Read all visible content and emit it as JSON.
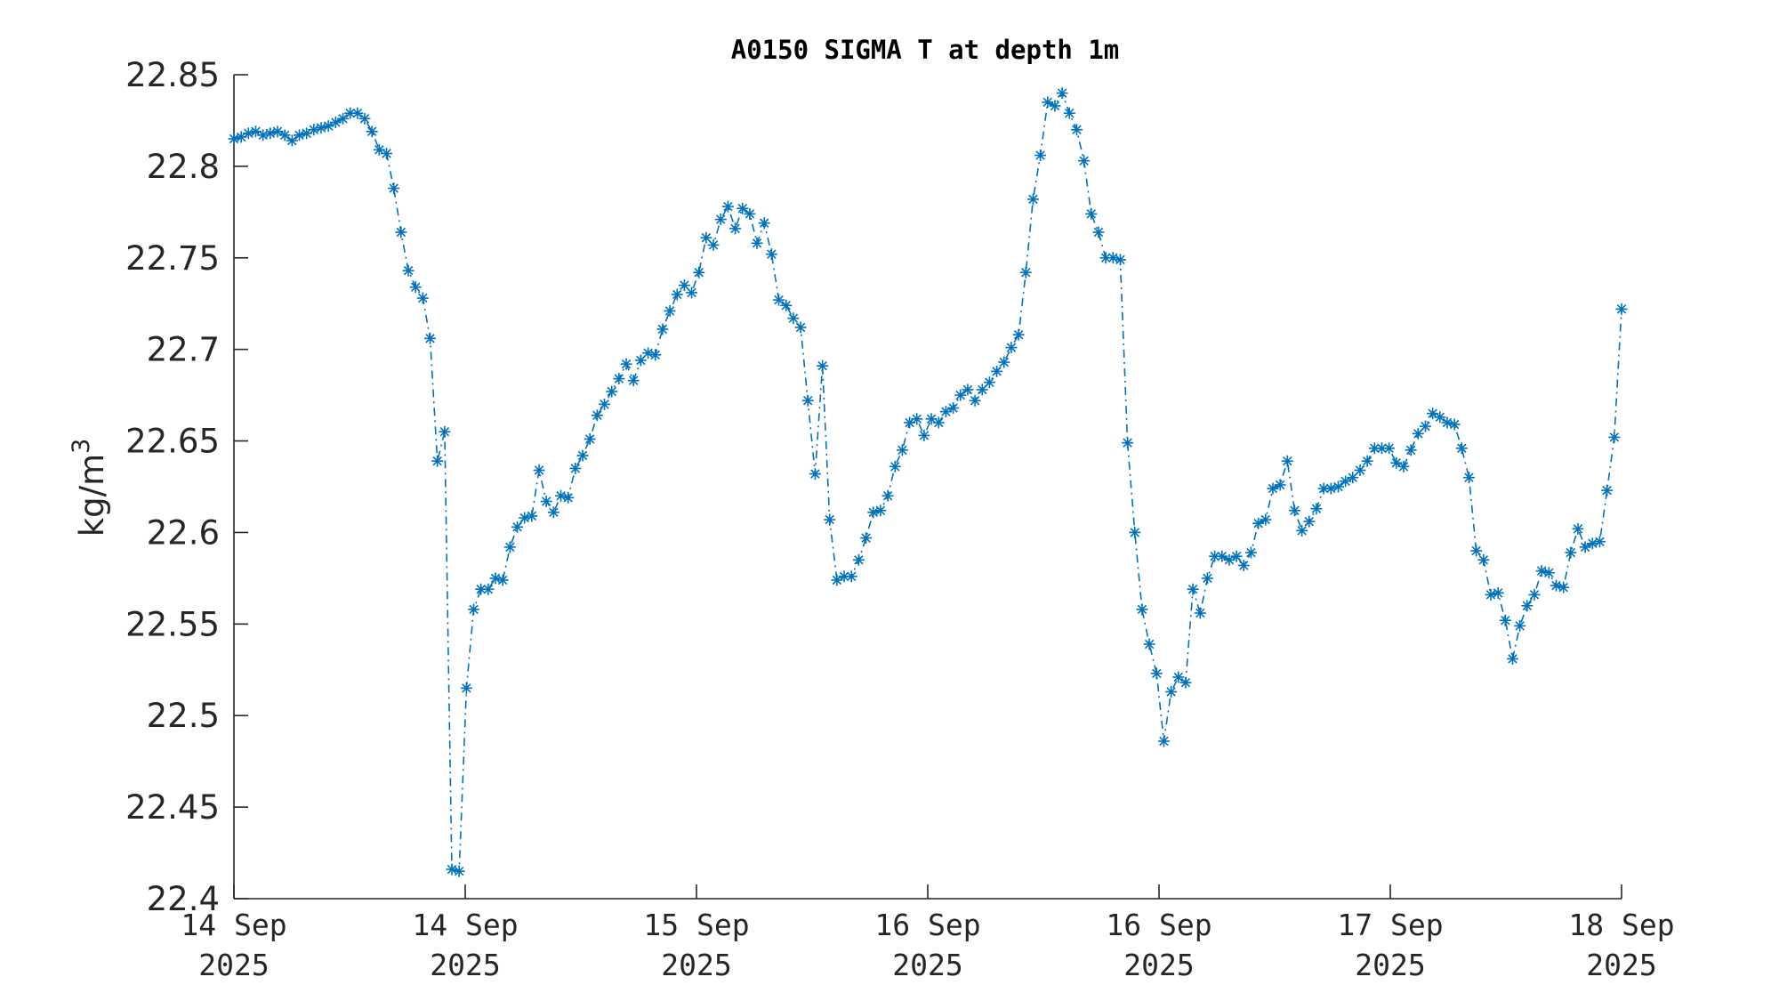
{
  "chart_data": {
    "type": "line",
    "title": "A0150 SIGMA T at depth 1m",
    "xlabel": "",
    "ylabel": "kg/m",
    "ylabel_superscript": "3",
    "ylim": [
      22.4,
      22.85
    ],
    "yticks": [
      "22.4",
      "22.45",
      "22.5",
      "22.55",
      "22.6",
      "22.65",
      "22.7",
      "22.75",
      "22.8",
      "22.85"
    ],
    "xticks": [
      {
        "line1": "14 Sep",
        "line2": "2025"
      },
      {
        "line1": "14 Sep",
        "line2": "2025"
      },
      {
        "line1": "15 Sep",
        "line2": "2025"
      },
      {
        "line1": "16 Sep",
        "line2": "2025"
      },
      {
        "line1": "16 Sep",
        "line2": "2025"
      },
      {
        "line1": "17 Sep",
        "line2": "2025"
      },
      {
        "line1": "18 Sep",
        "line2": "2025"
      }
    ],
    "xlim": [
      "2025-09-14 00:00",
      "2025-09-18 00:00"
    ],
    "grid": false,
    "line_style": "dash-dot",
    "marker": "asterisk",
    "series_color": "#0072BD",
    "series": [
      {
        "name": "",
        "values": [
          22.815,
          22.816,
          22.818,
          22.819,
          22.817,
          22.818,
          22.819,
          22.817,
          22.814,
          22.817,
          22.818,
          22.82,
          22.821,
          22.822,
          22.824,
          22.826,
          22.829,
          22.829,
          22.826,
          22.819,
          22.809,
          22.807,
          22.788,
          22.764,
          22.743,
          22.734,
          22.728,
          22.706,
          22.639,
          22.655,
          22.416,
          22.415,
          22.515,
          22.558,
          22.569,
          22.569,
          22.575,
          22.574,
          22.592,
          22.603,
          22.608,
          22.609,
          22.634,
          22.617,
          22.611,
          22.62,
          22.619,
          22.635,
          22.642,
          22.651,
          22.664,
          22.67,
          22.677,
          22.684,
          22.692,
          22.683,
          22.694,
          22.698,
          22.697,
          22.711,
          22.721,
          22.73,
          22.735,
          22.731,
          22.742,
          22.761,
          22.757,
          22.771,
          22.778,
          22.766,
          22.777,
          22.774,
          22.758,
          22.769,
          22.752,
          22.727,
          22.724,
          22.717,
          22.712,
          22.672,
          22.632,
          22.691,
          22.607,
          22.574,
          22.576,
          22.576,
          22.585,
          22.597,
          22.611,
          22.612,
          22.62,
          22.636,
          22.645,
          22.66,
          22.662,
          22.653,
          22.662,
          22.66,
          22.666,
          22.668,
          22.675,
          22.678,
          22.672,
          22.678,
          22.682,
          22.688,
          22.693,
          22.701,
          22.708,
          22.742,
          22.782,
          22.806,
          22.835,
          22.833,
          22.84,
          22.829,
          22.82,
          22.803,
          22.774,
          22.764,
          22.75,
          22.75,
          22.749,
          22.649,
          22.6,
          22.558,
          22.539,
          22.523,
          22.486,
          22.513,
          22.521,
          22.518,
          22.569,
          22.556,
          22.575,
          22.587,
          22.587,
          22.585,
          22.587,
          22.582,
          22.589,
          22.605,
          22.607,
          22.624,
          22.626,
          22.639,
          22.612,
          22.601,
          22.606,
          22.613,
          22.624,
          22.624,
          22.625,
          22.628,
          22.63,
          22.634,
          22.639,
          22.646,
          22.646,
          22.646,
          22.638,
          22.636,
          22.645,
          22.654,
          22.658,
          22.665,
          22.663,
          22.66,
          22.659,
          22.646,
          22.63,
          22.59,
          22.585,
          22.566,
          22.567,
          22.552,
          22.531,
          22.549,
          22.56,
          22.566,
          22.579,
          22.578,
          22.571,
          22.57,
          22.589,
          22.602,
          22.592,
          22.594,
          22.595,
          22.623,
          22.652,
          22.722
        ]
      }
    ]
  }
}
